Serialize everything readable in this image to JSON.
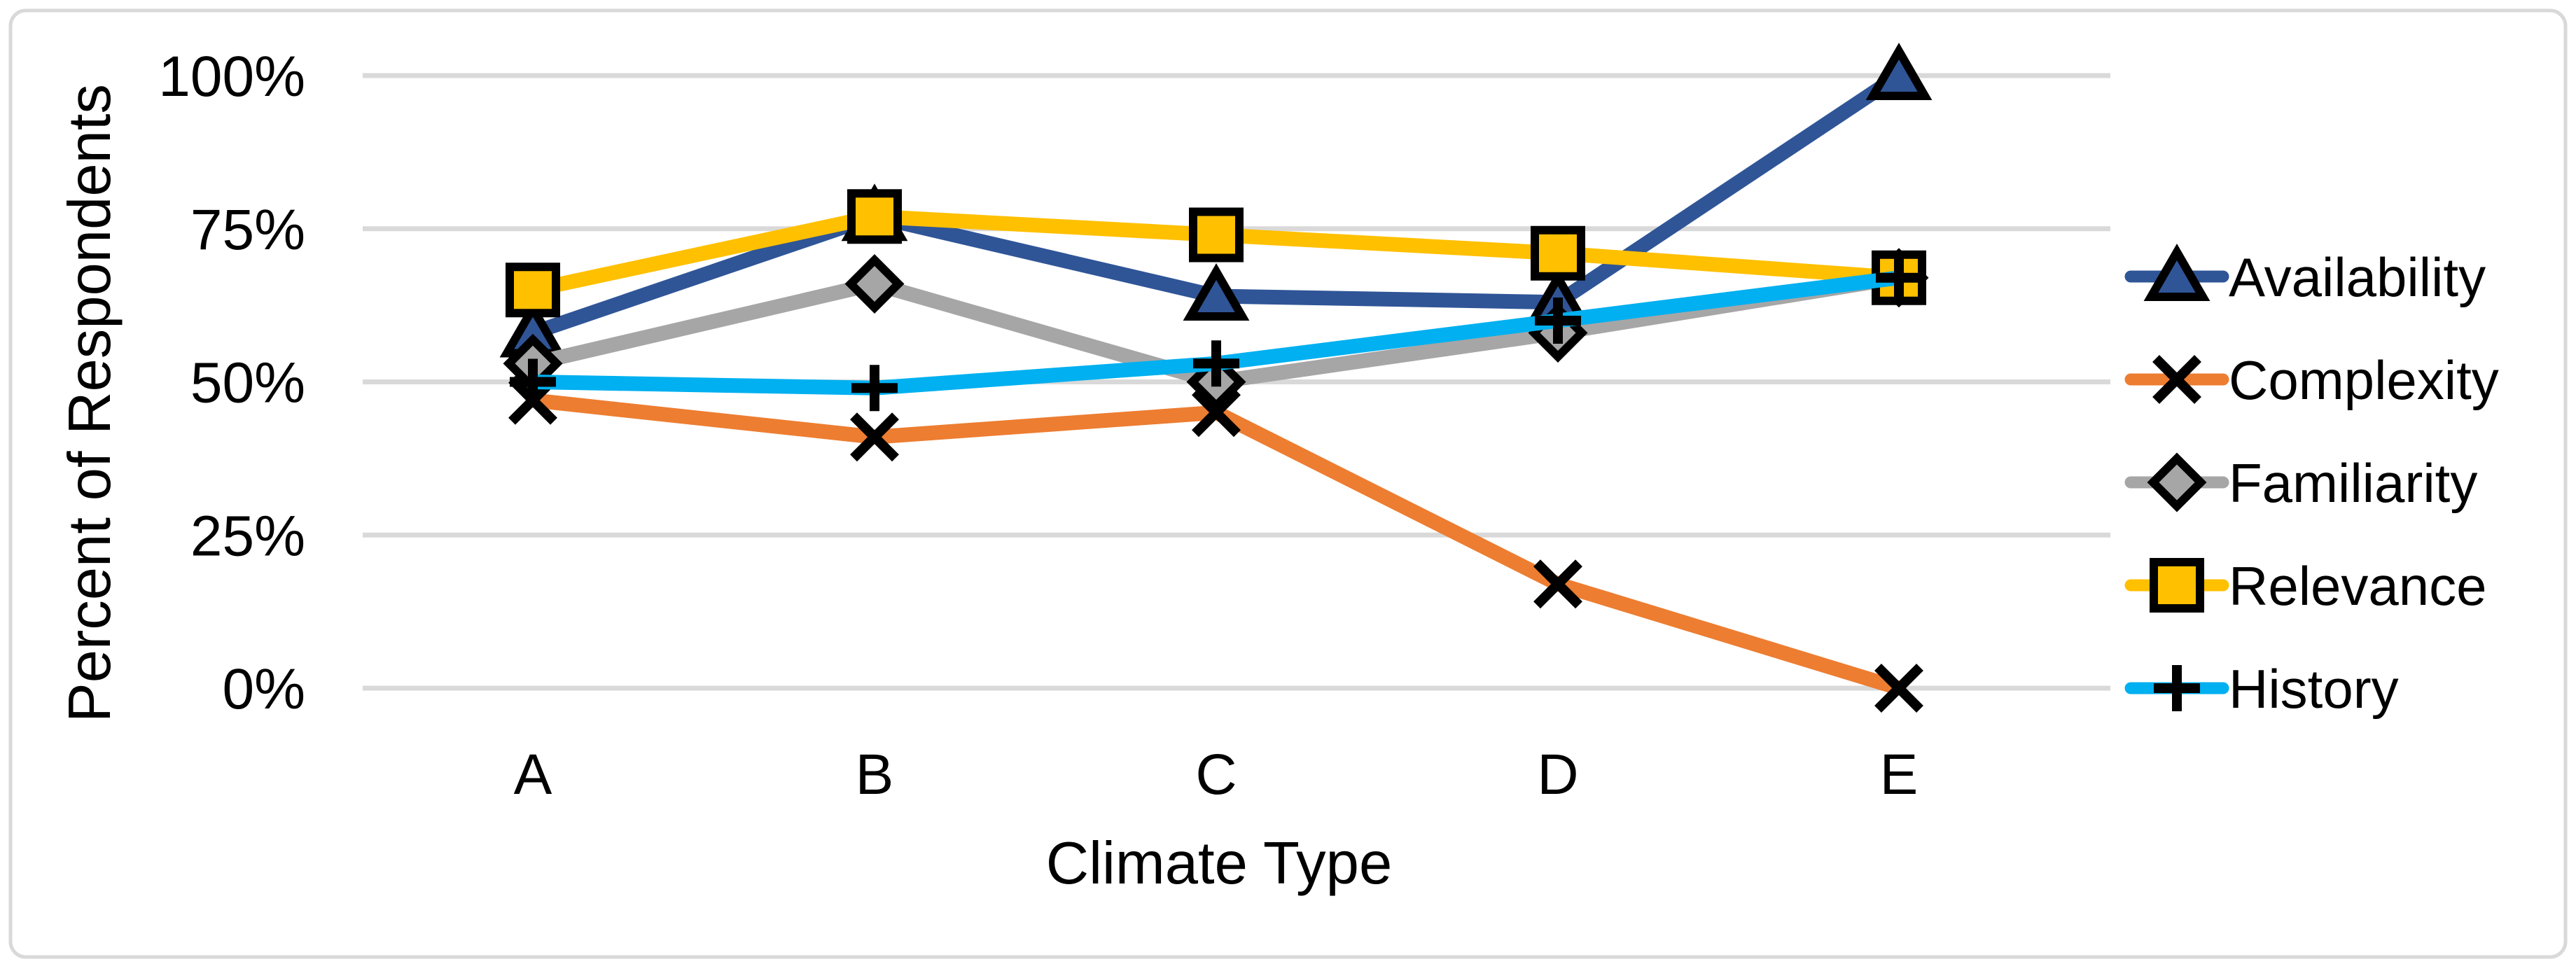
{
  "chart_data": {
    "type": "line",
    "title": "",
    "xlabel": "Climate Type",
    "ylabel": "Percent of Respondents",
    "categories": [
      "A",
      "B",
      "C",
      "D",
      "E"
    ],
    "series": [
      {
        "name": "Availability",
        "marker": "triangle",
        "color": "#2F5597",
        "values": [
          58,
          77,
          64,
          63,
          100
        ]
      },
      {
        "name": "Complexity",
        "marker": "x",
        "color": "#ED7D31",
        "values": [
          47,
          41,
          45,
          17,
          0
        ]
      },
      {
        "name": "Familiarity",
        "marker": "diamond",
        "color": "#A6A6A6",
        "values": [
          53,
          66,
          50,
          58,
          67
        ]
      },
      {
        "name": "Relevance",
        "marker": "square",
        "color": "#FFC000",
        "values": [
          65,
          77,
          74,
          71,
          67
        ]
      },
      {
        "name": "History",
        "marker": "plus",
        "color": "#00B0F0",
        "values": [
          50,
          49,
          53,
          60,
          67
        ]
      }
    ],
    "y_ticks": [
      {
        "label": "100%",
        "value": 100
      },
      {
        "label": "75%",
        "value": 75
      },
      {
        "label": "50%",
        "value": 50
      },
      {
        "label": "25%",
        "value": 25
      },
      {
        "label": "0%",
        "value": 0
      }
    ],
    "ylim": [
      0,
      100
    ],
    "grid": true,
    "legend_position": "right",
    "colors": {
      "gridline": "#D9D9D9",
      "chart_border": "#D9D9D9",
      "marker_outline": "#000000",
      "text": "#000000",
      "background": "#FFFFFF"
    }
  }
}
